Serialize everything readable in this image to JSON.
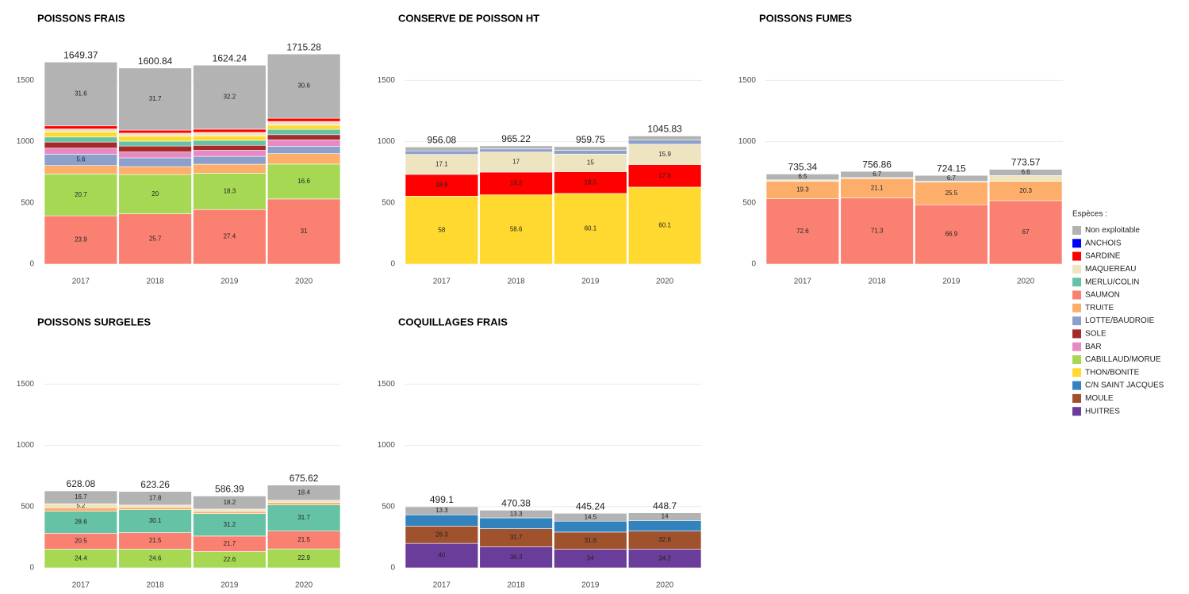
{
  "chart_data": [
    {
      "type": "bar",
      "title": "POISSONS FRAIS",
      "categories": [
        "2017",
        "2018",
        "2019",
        "2020"
      ],
      "totals": [
        1649.37,
        1600.84,
        1624.24,
        1715.28
      ],
      "ylim": [
        0,
        1800
      ],
      "yticks": [
        0,
        500,
        1000,
        1500
      ],
      "grid": true,
      "series": [
        {
          "name": "SAUMON",
          "values": [
            23.9,
            25.7,
            27.4,
            31
          ],
          "value_labels": [
            "23.9",
            "25.7",
            "27.4",
            "31"
          ]
        },
        {
          "name": "CABILLAUD/MORUE",
          "values": [
            20.7,
            20,
            18.3,
            16.6
          ],
          "value_labels": [
            "20.7",
            "20",
            "18.3",
            "16.6"
          ]
        },
        {
          "name": "TRUITE",
          "values": [
            4.2,
            4.0,
            4.5,
            5.0
          ],
          "value_labels": [
            null,
            null,
            null,
            null
          ]
        },
        {
          "name": "LOTTE/BAUDROIE",
          "values": [
            5.6,
            4.5,
            4.0,
            3.5
          ],
          "value_labels": [
            "5.6",
            null,
            null,
            null
          ]
        },
        {
          "name": "BAR",
          "values": [
            3.0,
            3.0,
            3.0,
            3.0
          ],
          "value_labels": [
            null,
            null,
            null,
            null
          ]
        },
        {
          "name": "SOLE",
          "values": [
            3.0,
            3.0,
            2.5,
            2.5
          ],
          "value_labels": [
            null,
            null,
            null,
            null
          ]
        },
        {
          "name": "MERLU/COLIN",
          "values": [
            2.5,
            2.5,
            2.5,
            2.5
          ],
          "value_labels": [
            null,
            null,
            null,
            null
          ]
        },
        {
          "name": "THON/BONITE",
          "values": [
            2.5,
            2.5,
            2.2,
            2.0
          ],
          "value_labels": [
            null,
            null,
            null,
            null
          ]
        },
        {
          "name": "MAQUEREAU",
          "values": [
            1.5,
            1.6,
            1.8,
            1.8
          ],
          "value_labels": [
            null,
            null,
            null,
            null
          ]
        },
        {
          "name": "SARDINE",
          "values": [
            1.5,
            1.5,
            1.6,
            1.5
          ],
          "value_labels": [
            null,
            null,
            null,
            null
          ]
        },
        {
          "name": "Non exploitable",
          "values": [
            31.6,
            31.7,
            32.2,
            30.6
          ],
          "value_labels": [
            "31.6",
            "31.7",
            "32.2",
            "30.6"
          ]
        }
      ]
    },
    {
      "type": "bar",
      "title": "CONSERVE DE POISSON HT",
      "categories": [
        "2017",
        "2018",
        "2019",
        "2020"
      ],
      "totals": [
        956.08,
        965.22,
        959.75,
        1045.83
      ],
      "ylim": [
        0,
        1800
      ],
      "yticks": [
        0,
        500,
        1000,
        1500
      ],
      "grid": true,
      "series": [
        {
          "name": "THON/BONITE",
          "values": [
            58,
            58.6,
            60.1,
            60.1
          ],
          "value_labels": [
            "58",
            "58.6",
            "60.1",
            "60.1"
          ]
        },
        {
          "name": "SARDINE",
          "values": [
            18.6,
            19.2,
            18.5,
            17.6
          ],
          "value_labels": [
            "18.6",
            "19.2",
            "18.5",
            "17.6"
          ]
        },
        {
          "name": "MAQUEREAU",
          "values": [
            17.1,
            17,
            15,
            15.9
          ],
          "value_labels": [
            "17.1",
            "17",
            "15",
            "15.9"
          ]
        },
        {
          "name": "LOTTE/BAUDROIE",
          "values": [
            3.0,
            2.6,
            3.2,
            3.2
          ],
          "value_labels": [
            null,
            null,
            null,
            null
          ]
        },
        {
          "name": "Non exploitable",
          "values": [
            3.3,
            2.6,
            3.2,
            3.2
          ],
          "value_labels": [
            null,
            null,
            null,
            null
          ]
        }
      ]
    },
    {
      "type": "bar",
      "title": "POISSONS FUMES",
      "categories": [
        "2017",
        "2018",
        "2019",
        "2020"
      ],
      "totals": [
        735.34,
        756.86,
        724.15,
        773.57
      ],
      "ylim": [
        0,
        1800
      ],
      "yticks": [
        0,
        500,
        1000,
        1500
      ],
      "grid": true,
      "series": [
        {
          "name": "SAUMON",
          "values": [
            72.6,
            71.3,
            66.9,
            67
          ],
          "value_labels": [
            "72.6",
            "71.3",
            "66.9",
            "67"
          ]
        },
        {
          "name": "TRUITE",
          "values": [
            19.3,
            21.1,
            25.5,
            20.3
          ],
          "value_labels": [
            "19.3",
            "21.1",
            "25.5",
            "20.3"
          ]
        },
        {
          "name": "MAQUEREAU",
          "values": [
            1.6,
            0.9,
            0.9,
            6.1
          ],
          "value_labels": [
            null,
            null,
            null,
            null
          ]
        },
        {
          "name": "Non exploitable",
          "values": [
            6.5,
            6.7,
            6.7,
            6.6
          ],
          "value_labels": [
            "6.5",
            "6.7",
            "6.7",
            "6.6"
          ]
        }
      ]
    },
    {
      "type": "bar",
      "title": "POISSONS SURGELES",
      "categories": [
        "2017",
        "2018",
        "2019",
        "2020"
      ],
      "totals": [
        628.08,
        623.26,
        586.39,
        675.62
      ],
      "ylim": [
        0,
        1800
      ],
      "yticks": [
        0,
        500,
        1000,
        1500
      ],
      "grid": true,
      "series": [
        {
          "name": "CABILLAUD/MORUE",
          "values": [
            24.4,
            24.6,
            22.6,
            22.9
          ],
          "value_labels": [
            "24.4",
            "24.6",
            "22.6",
            "22.9"
          ]
        },
        {
          "name": "SAUMON",
          "values": [
            20.5,
            21.5,
            21.7,
            21.5
          ],
          "value_labels": [
            "20.5",
            "21.5",
            "21.7",
            "21.5"
          ]
        },
        {
          "name": "MERLU/COLIN",
          "values": [
            28.6,
            30.1,
            31.2,
            31.7
          ],
          "value_labels": [
            "28.6",
            "30.1",
            "31.2",
            "31.7"
          ]
        },
        {
          "name": "TRUITE",
          "values": [
            4.6,
            3.0,
            3.0,
            3.0
          ],
          "value_labels": [
            null,
            null,
            null,
            null
          ]
        },
        {
          "name": "MAQUEREAU",
          "values": [
            5.2,
            3.0,
            3.3,
            2.5
          ],
          "value_labels": [
            "5.2",
            null,
            null,
            null
          ]
        },
        {
          "name": "Non exploitable",
          "values": [
            16.7,
            17.8,
            18.2,
            18.4
          ],
          "value_labels": [
            "16.7",
            "17.8",
            "18.2",
            "18.4"
          ]
        }
      ]
    },
    {
      "type": "bar",
      "title": "COQUILLAGES FRAIS",
      "categories": [
        "2017",
        "2018",
        "2019",
        "2020"
      ],
      "totals": [
        499.1,
        470.38,
        445.24,
        448.7
      ],
      "ylim": [
        0,
        1800
      ],
      "yticks": [
        0,
        500,
        1000,
        1500
      ],
      "grid": true,
      "series": [
        {
          "name": "HUITRES",
          "values": [
            40,
            36.3,
            34,
            34.2
          ],
          "value_labels": [
            "40",
            "36.3",
            "34",
            "34.2"
          ]
        },
        {
          "name": "MOULE",
          "values": [
            28.3,
            31.7,
            31.6,
            32.6
          ],
          "value_labels": [
            "28.3",
            "31.7",
            "31.6",
            "32.6"
          ]
        },
        {
          "name": "C/N SAINT JACQUES",
          "values": [
            18.4,
            18.7,
            19.9,
            19.2
          ],
          "value_labels": [
            null,
            null,
            null,
            null
          ]
        },
        {
          "name": "Non exploitable",
          "values": [
            13.3,
            13.3,
            14.5,
            14
          ],
          "value_labels": [
            "13.3",
            "13.3",
            "14.5",
            "14"
          ]
        }
      ]
    }
  ],
  "legend": {
    "title": "Espèces :",
    "position": "right",
    "entries": [
      {
        "name": "Non exploitable",
        "color": "#b3b3b3"
      },
      {
        "name": "ANCHOIS",
        "color": "#0000ff"
      },
      {
        "name": "SARDINE",
        "color": "#ff0000"
      },
      {
        "name": "MAQUEREAU",
        "color": "#efe4c0"
      },
      {
        "name": "MERLU/COLIN",
        "color": "#66c2a5"
      },
      {
        "name": "SAUMON",
        "color": "#fa8072"
      },
      {
        "name": "TRUITE",
        "color": "#fdae6b"
      },
      {
        "name": "LOTTE/BAUDROIE",
        "color": "#8da0cb"
      },
      {
        "name": "SOLE",
        "color": "#a52a2a"
      },
      {
        "name": "BAR",
        "color": "#e78ac3"
      },
      {
        "name": "CABILLAUD/MORUE",
        "color": "#a6d854"
      },
      {
        "name": "THON/BONITE",
        "color": "#ffd92f"
      },
      {
        "name": "C/N SAINT JACQUES",
        "color": "#3182bd"
      },
      {
        "name": "MOULE",
        "color": "#a0522d"
      },
      {
        "name": "HUITRES",
        "color": "#6a3d9a"
      }
    ]
  }
}
